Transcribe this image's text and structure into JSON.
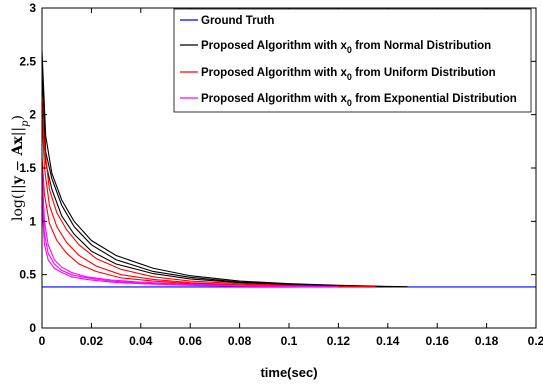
{
  "chart_data": {
    "type": "line",
    "title": "",
    "xlabel": "time(sec)",
    "ylabel_parts": [
      "log(||",
      "y",
      " − ",
      "Ax",
      "||",
      "p",
      ")"
    ],
    "xlim": [
      0,
      0.2
    ],
    "ylim": [
      0,
      3
    ],
    "xticks": [
      0,
      0.02,
      0.04,
      0.06,
      0.08,
      0.1,
      0.12,
      0.14,
      0.16,
      0.18,
      0.2
    ],
    "xtick_labels": [
      "0",
      "0.02",
      "0.04",
      "0.06",
      "0.08",
      "0.1",
      "0.12",
      "0.14",
      "0.16",
      "0.18",
      "0.2"
    ],
    "yticks": [
      0,
      0.5,
      1,
      1.5,
      2,
      2.5,
      3
    ],
    "ytick_labels": [
      "0",
      "0.5",
      "1",
      "1.5",
      "2",
      "2.5",
      "3"
    ],
    "legend_position": "top-right",
    "legend": [
      {
        "color": "#0000ff",
        "text": "Ground Truth"
      },
      {
        "color": "#000000",
        "text": "Proposed Algorithm with x",
        "sub": "0",
        "rest": " from Normal Distribution"
      },
      {
        "color": "#ff0000",
        "text": "Proposed Algorithm with x",
        "sub": "0",
        "rest": " from Uniform Distribution"
      },
      {
        "color": "#ff00ff",
        "text": "Proposed Algorithm with x",
        "sub": "0",
        "rest": " from Exponential Distribution"
      }
    ],
    "series": [
      {
        "group": "ground",
        "color": "#0000ff",
        "x": [
          0,
          0.2
        ],
        "y": [
          0.385,
          0.385
        ]
      },
      {
        "group": "normal",
        "color": "#000000",
        "x": [
          0,
          0.0015,
          0.004,
          0.008,
          0.013,
          0.02,
          0.03,
          0.045,
          0.06,
          0.08,
          0.1,
          0.12,
          0.14,
          0.148
        ],
        "y": [
          2.6,
          1.8,
          1.45,
          1.2,
          1.0,
          0.82,
          0.68,
          0.56,
          0.49,
          0.44,
          0.415,
          0.4,
          0.39,
          0.387
        ]
      },
      {
        "group": "normal",
        "color": "#000000",
        "x": [
          0,
          0.0015,
          0.004,
          0.008,
          0.013,
          0.02,
          0.03,
          0.045,
          0.06,
          0.08,
          0.1,
          0.12,
          0.142
        ],
        "y": [
          2.4,
          1.65,
          1.4,
          1.15,
          0.95,
          0.78,
          0.64,
          0.53,
          0.475,
          0.43,
          0.41,
          0.395,
          0.387
        ]
      },
      {
        "group": "normal",
        "color": "#000000",
        "x": [
          0,
          0.0015,
          0.004,
          0.008,
          0.013,
          0.02,
          0.03,
          0.045,
          0.06,
          0.08,
          0.1,
          0.12,
          0.138
        ],
        "y": [
          2.1,
          1.55,
          1.3,
          1.05,
          0.88,
          0.72,
          0.6,
          0.51,
          0.46,
          0.425,
          0.405,
          0.392,
          0.387
        ]
      },
      {
        "group": "uniform",
        "color": "#ff0000",
        "x": [
          0,
          0.001,
          0.003,
          0.006,
          0.01,
          0.015,
          0.022,
          0.032,
          0.045,
          0.06,
          0.08,
          0.1,
          0.12,
          0.135
        ],
        "y": [
          2.2,
          1.7,
          1.3,
          1.08,
          0.92,
          0.78,
          0.65,
          0.55,
          0.48,
          0.44,
          0.415,
          0.4,
          0.39,
          0.387
        ]
      },
      {
        "group": "uniform",
        "color": "#ff0000",
        "x": [
          0,
          0.001,
          0.003,
          0.006,
          0.01,
          0.015,
          0.022,
          0.032,
          0.045,
          0.06,
          0.08,
          0.1,
          0.12,
          0.13
        ],
        "y": [
          2.0,
          1.5,
          1.15,
          0.95,
          0.8,
          0.68,
          0.58,
          0.5,
          0.455,
          0.425,
          0.405,
          0.395,
          0.388,
          0.386
        ]
      },
      {
        "group": "uniform",
        "color": "#ff0000",
        "x": [
          0,
          0.001,
          0.003,
          0.006,
          0.01,
          0.015,
          0.022,
          0.032,
          0.045,
          0.06,
          0.08,
          0.1,
          0.125
        ],
        "y": [
          1.6,
          1.25,
          0.98,
          0.82,
          0.7,
          0.6,
          0.53,
          0.47,
          0.44,
          0.415,
          0.4,
          0.392,
          0.386
        ]
      },
      {
        "group": "exponential",
        "color": "#ff00ff",
        "x": [
          0,
          0.001,
          0.0025,
          0.005,
          0.008,
          0.012,
          0.018,
          0.028,
          0.04,
          0.06,
          0.08,
          0.1,
          0.12
        ],
        "y": [
          1.5,
          1.0,
          0.78,
          0.64,
          0.57,
          0.52,
          0.48,
          0.45,
          0.43,
          0.41,
          0.398,
          0.39,
          0.386
        ]
      },
      {
        "group": "exponential",
        "color": "#ff00ff",
        "x": [
          0,
          0.001,
          0.0025,
          0.005,
          0.008,
          0.012,
          0.018,
          0.028,
          0.04,
          0.06,
          0.08,
          0.1,
          0.115
        ],
        "y": [
          1.3,
          0.88,
          0.7,
          0.6,
          0.54,
          0.5,
          0.47,
          0.44,
          0.42,
          0.405,
          0.395,
          0.389,
          0.386
        ]
      },
      {
        "group": "exponential",
        "color": "#ff00ff",
        "x": [
          0,
          0.001,
          0.0025,
          0.005,
          0.008,
          0.012,
          0.018,
          0.028,
          0.04,
          0.06,
          0.08,
          0.1,
          0.11
        ],
        "y": [
          1.15,
          0.78,
          0.64,
          0.56,
          0.52,
          0.48,
          0.455,
          0.43,
          0.415,
          0.4,
          0.392,
          0.388,
          0.386
        ]
      }
    ]
  }
}
